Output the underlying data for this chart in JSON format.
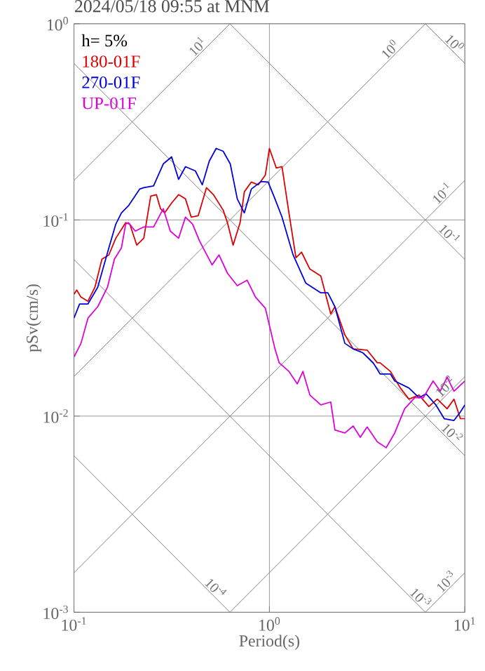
{
  "chart_data": {
    "type": "line",
    "title": "2024/05/18 09:55 at MNM",
    "xlabel": "Period(s)",
    "ylabel": "pSv(cm/s)",
    "log": "xy",
    "grid": true,
    "legend": "top left",
    "marker": "none",
    "line_style": "solid",
    "xlim": [
      0.1,
      10
    ],
    "ylim": [
      0.001,
      1
    ],
    "xticks": [
      {
        "value": 0.1,
        "label": "10$^{-1}$"
      },
      {
        "value": 1,
        "label": "10$^{0}$"
      },
      {
        "value": 10,
        "label": "10$^{1}$"
      }
    ],
    "yticks": [
      {
        "value": 0.001,
        "label": "10$^{-3}$"
      },
      {
        "value": 0.01,
        "label": "10$^{-2}$"
      },
      {
        "value": 0.1,
        "label": "10$^{-1}$"
      },
      {
        "value": 1,
        "label": "10$^{0}$"
      }
    ],
    "series": [
      {
        "name": "180-01F",
        "color": "#dd0000",
        "x": [
          0.1,
          0.1033,
          0.1086,
          0.1179,
          0.128,
          0.139,
          0.1508,
          0.1637,
          0.1839,
          0.193,
          0.2096,
          0.2276,
          0.247,
          0.264,
          0.2771,
          0.2911,
          0.316,
          0.343,
          0.372,
          0.398,
          0.432,
          0.4764,
          0.517,
          0.58,
          0.61,
          0.652,
          0.708,
          0.744,
          0.808,
          0.877,
          0.953,
          1.0,
          1.085,
          1.16,
          1.259,
          1.367,
          1.46,
          1.611,
          1.833,
          2.06,
          2.164,
          2.432,
          2.683,
          3.162,
          3.566,
          3.684,
          4.161,
          4.68,
          5.179,
          5.828,
          6.547,
          7.234,
          8.112,
          8.799,
          9.49,
          10.0
        ],
        "values": [
          0.0418,
          0.0439,
          0.0404,
          0.0385,
          0.0454,
          0.0631,
          0.0663,
          0.0807,
          0.0968,
          0.0952,
          0.0744,
          0.0807,
          0.1322,
          0.1345,
          0.1141,
          0.1086,
          0.1219,
          0.1345,
          0.128,
          0.1034,
          0.105,
          0.146,
          0.1345,
          0.1122,
          0.0968,
          0.0744,
          0.0968,
          0.139,
          0.156,
          0.151,
          0.1693,
          0.2313,
          0.1838,
          0.1868,
          0.1086,
          0.0642,
          0.0685,
          0.0562,
          0.0518,
          0.0332,
          0.0361,
          0.026,
          0.022,
          0.0217,
          0.0187,
          0.0187,
          0.0169,
          0.0139,
          0.0122,
          0.0128,
          0.0112,
          0.0122,
          0.0109,
          0.0122,
          0.0097,
          0.0097
        ]
      },
      {
        "name": "270-01F",
        "color": "#0000dd",
        "x": [
          0.1,
          0.1068,
          0.1179,
          0.1323,
          0.1508,
          0.1637,
          0.1749,
          0.19,
          0.2167,
          0.2276,
          0.2554,
          0.2864,
          0.316,
          0.343,
          0.372,
          0.418,
          0.4536,
          0.4924,
          0.534,
          0.58,
          0.6305,
          0.685,
          0.744,
          0.808,
          0.907,
          0.985,
          1.068,
          1.16,
          1.259,
          1.322,
          1.534,
          1.833,
          1.991,
          2.164,
          2.432,
          2.683,
          3.015,
          3.397,
          3.684,
          4.161,
          4.375,
          5.179,
          5.828,
          6.333,
          7.11,
          7.851,
          8.799,
          9.49,
          10.0
        ],
        "values": [
          0.0316,
          0.0373,
          0.0373,
          0.0454,
          0.072,
          0.0952,
          0.1086,
          0.118,
          0.1436,
          0.146,
          0.1491,
          0.193,
          0.2096,
          0.161,
          0.1868,
          0.1778,
          0.151,
          0.1995,
          0.2313,
          0.2239,
          0.193,
          0.128,
          0.1086,
          0.1436,
          0.1569,
          0.156,
          0.128,
          0.1034,
          0.0781,
          0.0663,
          0.0477,
          0.0425,
          0.0425,
          0.0361,
          0.0235,
          0.022,
          0.021,
          0.0187,
          0.0164,
          0.0164,
          0.0151,
          0.0139,
          0.0124,
          0.013,
          0.0114,
          0.0097,
          0.0095,
          0.0105,
          0.0114
        ]
      },
      {
        "name": "UP-01F",
        "color": "#dd00dd",
        "x": [
          0.1,
          0.1086,
          0.1179,
          0.1323,
          0.1484,
          0.161,
          0.1749,
          0.1839,
          0.19,
          0.206,
          0.2276,
          0.2554,
          0.2864,
          0.311,
          0.343,
          0.372,
          0.4045,
          0.439,
          0.509,
          0.552,
          0.61,
          0.685,
          0.769,
          0.849,
          0.953,
          1.068,
          1.122,
          1.259,
          1.389,
          1.484,
          1.611,
          1.833,
          2.06,
          2.164,
          2.432,
          2.683,
          2.918,
          3.162,
          3.566,
          3.959,
          4.375,
          4.919,
          5.544,
          6.126,
          6.882,
          7.48,
          8.112,
          8.799,
          10.0
        ],
        "values": [
          0.02,
          0.0235,
          0.0316,
          0.0361,
          0.0454,
          0.0631,
          0.072,
          0.0952,
          0.0968,
          0.0877,
          0.0921,
          0.0921,
          0.1141,
          0.0877,
          0.0807,
          0.1034,
          0.0952,
          0.0781,
          0.059,
          0.0663,
          0.0535,
          0.0462,
          0.0493,
          0.0404,
          0.0355,
          0.022,
          0.0187,
          0.0169,
          0.0146,
          0.0169,
          0.0128,
          0.0114,
          0.0118,
          0.0085,
          0.0082,
          0.0089,
          0.0078,
          0.0088,
          0.0074,
          0.0069,
          0.0082,
          0.0109,
          0.0124,
          0.0124,
          0.0151,
          0.0134,
          0.0158,
          0.0134,
          0.0151
        ]
      },
      {
        "color": "#808080",
        "x": [
          0.1,
          0.628
        ],
        "values": [
          0.159,
          1
        ]
      },
      {
        "color": "#808080",
        "x": [
          0.1,
          6.28
        ],
        "values": [
          0.0159,
          1
        ]
      },
      {
        "color": "#808080",
        "x": [
          0.1,
          10
        ],
        "values": [
          0.00159,
          0.159
        ]
      },
      {
        "color": "#808080",
        "x": [
          0.628,
          10
        ],
        "values": [
          0.001,
          0.0159
        ]
      },
      {
        "color": "#808080",
        "x": [
          6.28,
          10
        ],
        "values": [
          0.001,
          0.00159
        ]
      },
      {
        "color": "#808080",
        "x": [
          6.28,
          10
        ],
        "values": [
          1,
          0.628
        ]
      },
      {
        "color": "#808080",
        "x": [
          0.628,
          10
        ],
        "values": [
          1,
          0.0628
        ]
      },
      {
        "color": "#808080",
        "x": [
          0.1,
          10
        ],
        "values": [
          0.628,
          0.00628
        ]
      },
      {
        "color": "#808080",
        "x": [
          0.1,
          6.28
        ],
        "values": [
          0.0628,
          0.001
        ]
      },
      {
        "color": "#808080",
        "x": [
          0.1,
          0.628
        ],
        "values": [
          0.00628,
          0.001
        ]
      }
    ],
    "annotations": [
      "h= 5%",
      {
        "text": "10$^{1}$",
        "x": 0.454,
        "y": 0.7226
      },
      {
        "text": "10$^{0}$",
        "x": 4.39,
        "y": 0.699
      },
      {
        "text": "10$^{0}$",
        "x": 8.35,
        "y": 0.752
      },
      {
        "text": "10$^{-1}$",
        "x": 8.11,
        "y": 0.129
      },
      {
        "text": "10$^{-1}$",
        "x": 7.85,
        "y": 0.08
      },
      {
        "text": "10$^{-2}$",
        "x": 8.4,
        "y": 0.01337
      },
      {
        "text": "10$^{-2}$",
        "x": 8.11,
        "y": 0.00774
      },
      {
        "text": "10$^{-4}$",
        "x": 0.5,
        "y": 0.001256
      },
      {
        "text": "10$^{-3}$",
        "x": 5.6,
        "y": 0.00112
      },
      {
        "text": "10$^{-3}$",
        "x": 8.5,
        "y": 0.001353
      }
    ]
  }
}
